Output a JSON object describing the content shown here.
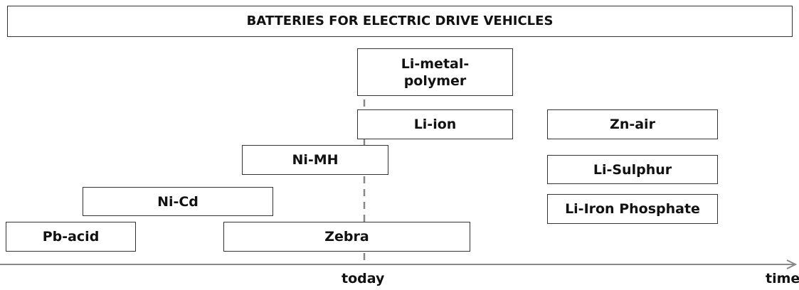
{
  "title": "BATTERIES FOR ELECTRIC DRIVE VEHICLES",
  "nodes": [
    {
      "label": "Li-metal-polymer"
    },
    {
      "label": "Li-ion"
    },
    {
      "label": "Ni-MH"
    },
    {
      "label": "Ni-Cd"
    },
    {
      "label": "Pb-acid"
    },
    {
      "label": "Zebra"
    },
    {
      "label": "Zn-air"
    },
    {
      "label": "Li-Sulphur"
    },
    {
      "label": "Li-Iron Phosphate"
    }
  ],
  "axis": {
    "marker": "today",
    "label": "time"
  }
}
